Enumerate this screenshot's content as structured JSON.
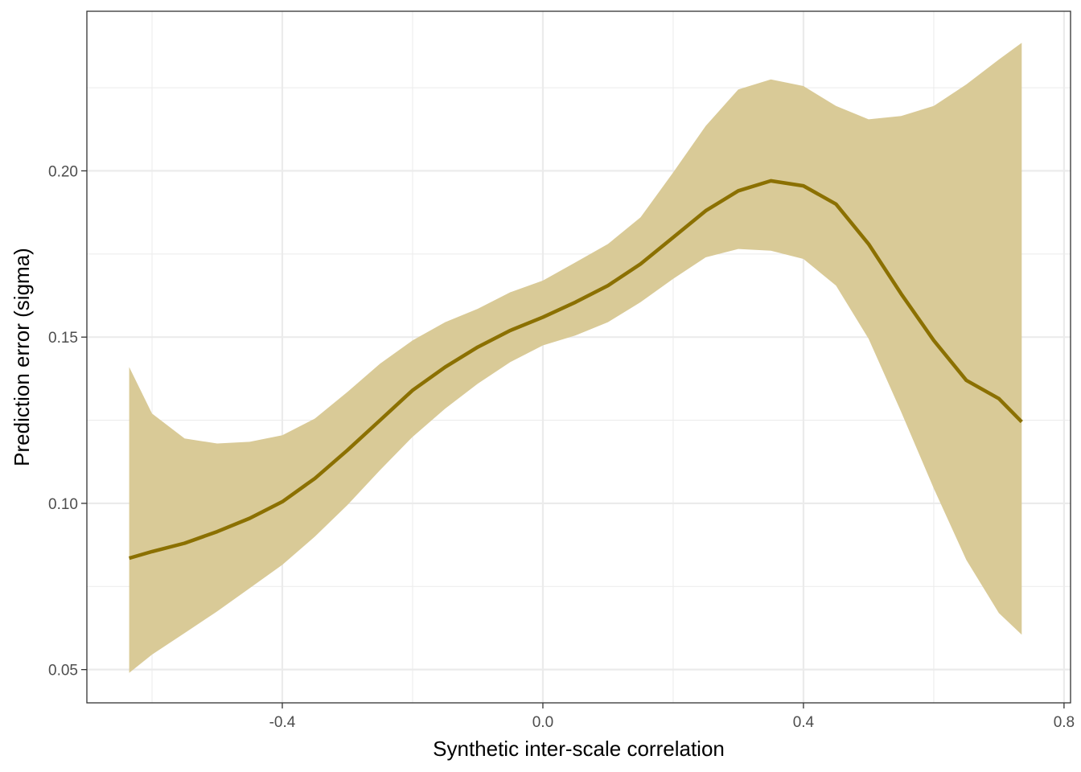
{
  "chart_data": {
    "type": "line",
    "title": "",
    "xlabel": "Synthetic inter-scale correlation",
    "ylabel": "Prediction error (sigma)",
    "xlim": [
      -0.7,
      0.81
    ],
    "ylim": [
      0.04,
      0.248
    ],
    "x_ticks": [
      -0.4,
      0.0,
      0.4,
      0.8
    ],
    "x_tick_labels": [
      "-0.4",
      "0.0",
      "0.4",
      "0.8"
    ],
    "y_ticks": [
      0.05,
      0.1,
      0.15,
      0.2
    ],
    "y_tick_labels": [
      "0.05",
      "0.10",
      "0.15",
      "0.20"
    ],
    "grid": true,
    "legend": "none",
    "series": [
      {
        "x": [
          -0.635,
          -0.6,
          -0.55,
          -0.5,
          -0.45,
          -0.4,
          -0.35,
          -0.3,
          -0.25,
          -0.2,
          -0.15,
          -0.1,
          -0.05,
          0.0,
          0.05,
          0.1,
          0.15,
          0.2,
          0.25,
          0.3,
          0.35,
          0.4,
          0.45,
          0.5,
          0.55,
          0.6,
          0.65,
          0.7,
          0.735
        ],
        "y": [
          0.0835,
          0.0855,
          0.088,
          0.0915,
          0.0955,
          0.1005,
          0.1075,
          0.116,
          0.125,
          0.134,
          0.141,
          0.147,
          0.152,
          0.156,
          0.1605,
          0.1655,
          0.172,
          0.18,
          0.188,
          0.194,
          0.197,
          0.1955,
          0.19,
          0.178,
          0.163,
          0.149,
          0.137,
          0.1315,
          0.1245
        ],
        "lower": [
          0.049,
          0.0545,
          0.061,
          0.0675,
          0.0745,
          0.0815,
          0.09,
          0.0995,
          0.11,
          0.12,
          0.1285,
          0.136,
          0.1425,
          0.1475,
          0.1505,
          0.1545,
          0.1605,
          0.1675,
          0.174,
          0.1765,
          0.176,
          0.1735,
          0.1655,
          0.1495,
          0.1275,
          0.1045,
          0.083,
          0.067,
          0.0605
        ],
        "upper": [
          0.141,
          0.127,
          0.1195,
          0.118,
          0.1185,
          0.1205,
          0.1255,
          0.1335,
          0.142,
          0.149,
          0.1545,
          0.1585,
          0.1635,
          0.167,
          0.1725,
          0.178,
          0.186,
          0.1995,
          0.2135,
          0.2245,
          0.2275,
          0.2255,
          0.2195,
          0.2155,
          0.2165,
          0.2195,
          0.226,
          0.2335,
          0.2385
        ]
      }
    ],
    "colors": {
      "line": "#8b7000",
      "band": "#d9ca97",
      "grid": "#ebebeb",
      "panel_border": "#333333"
    }
  }
}
